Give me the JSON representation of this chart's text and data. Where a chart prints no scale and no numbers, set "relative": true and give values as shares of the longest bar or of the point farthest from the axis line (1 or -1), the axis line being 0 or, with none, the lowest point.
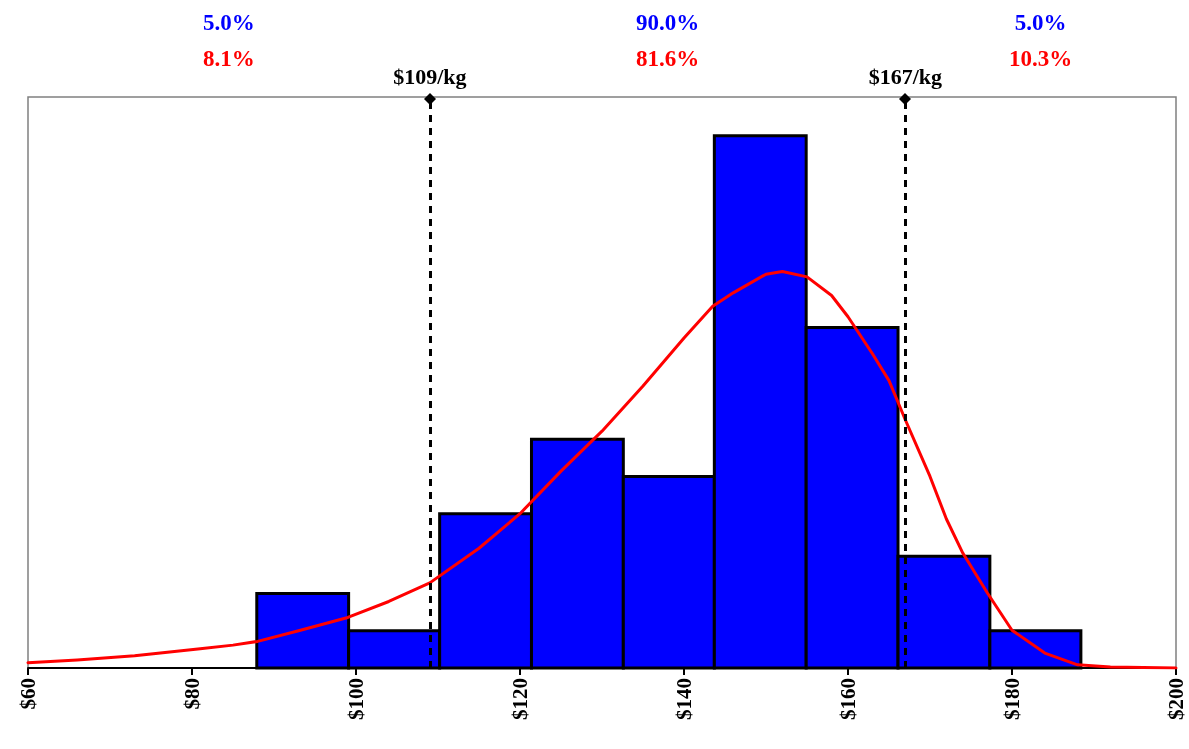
{
  "chart_data": {
    "type": "histogram",
    "relative": true,
    "bins": [
      87.9,
      99.1,
      110.2,
      121.4,
      132.6,
      143.7,
      154.9,
      166.1,
      177.3,
      188.4
    ],
    "series": [
      {
        "color": "#0000ff",
        "values": [
          0.14,
          0.07,
          0.29,
          0.43,
          0.36,
          1,
          0.64,
          0.21,
          0.07
        ]
      },
      {
        "type": "line",
        "color": "#ff0000",
        "x": [
          60,
          66,
          73,
          81,
          85,
          88,
          93,
          99,
          104,
          109,
          115,
          120,
          125,
          130,
          135,
          140,
          143.5,
          146,
          150,
          152,
          155,
          158,
          160,
          163,
          165,
          167,
          170,
          172,
          174,
          177,
          180,
          184,
          188,
          192,
          200
        ],
        "values": [
          0.01,
          0.015,
          0.023,
          0.036,
          0.043,
          0.05,
          0.07,
          0.095,
          0.125,
          0.16,
          0.225,
          0.29,
          0.37,
          0.445,
          0.53,
          0.62,
          0.68,
          0.705,
          0.74,
          0.745,
          0.735,
          0.7,
          0.66,
          0.59,
          0.54,
          0.466,
          0.36,
          0.28,
          0.216,
          0.141,
          0.071,
          0.028,
          0.006,
          0.002,
          0
        ]
      }
    ],
    "xlim": [
      60,
      200
    ],
    "xticks": [
      {
        "value": 60,
        "label": "$60"
      },
      {
        "value": 80,
        "label": "$80"
      },
      {
        "value": 100,
        "label": "$100"
      },
      {
        "value": 120,
        "label": "$120"
      },
      {
        "value": 140,
        "label": "$140"
      },
      {
        "value": 160,
        "label": "$160"
      },
      {
        "value": 180,
        "label": "$180"
      },
      {
        "value": 200,
        "label": "$200"
      }
    ],
    "ref_lines": [
      {
        "axis": "x",
        "value": 109,
        "label": "$109/kg",
        "color": "#000000",
        "line_style": "dashed"
      },
      {
        "axis": "x",
        "value": 167,
        "label": "$167/kg",
        "color": "#000000",
        "line_style": "dashed"
      }
    ],
    "annotations": [
      "5.0%",
      "90.0%",
      "5.0%",
      "8.1%",
      "81.6%",
      "10.3%"
    ],
    "grid": false
  }
}
